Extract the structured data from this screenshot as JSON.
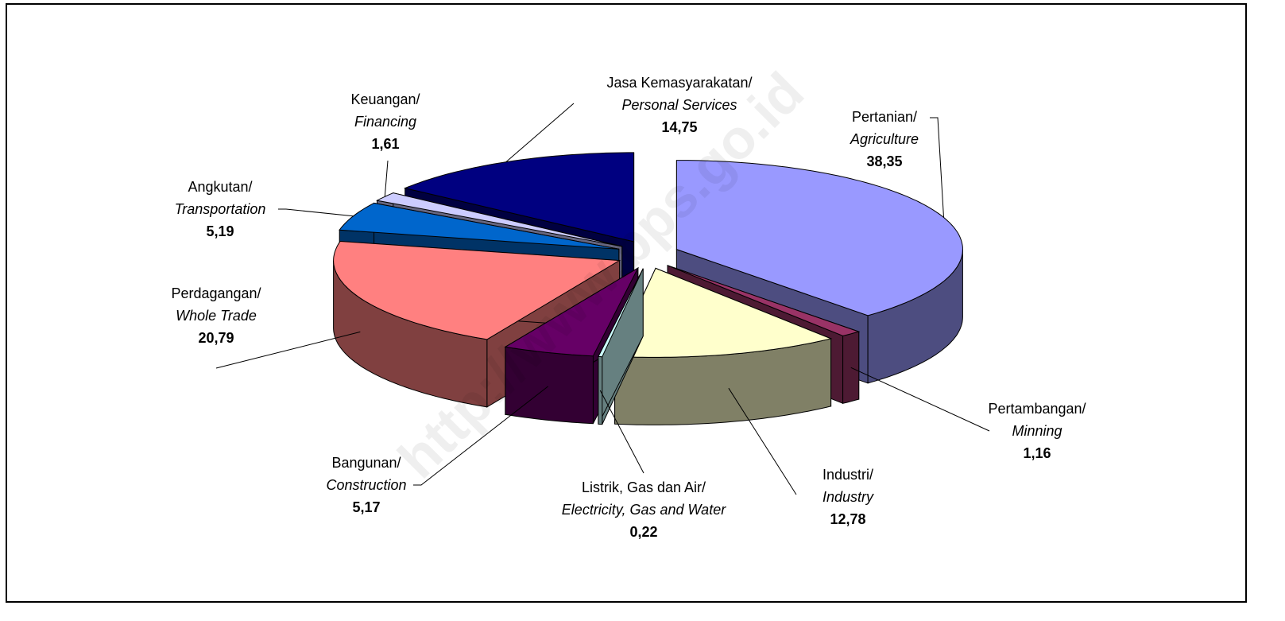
{
  "chart_data": {
    "type": "pie3d",
    "categories": [
      "Pertanian/",
      "Pertambangan/",
      "Industri/",
      "Listrik, Gas dan Air/",
      "Bangunan/",
      "Perdagangan/",
      "Angkutan/",
      "Keuangan/",
      "Jasa Kemasyarakatan/"
    ],
    "categories_en": [
      "Agriculture",
      "Minning",
      "Industry",
      "Electricity, Gas and Water",
      "Construction",
      "Whole Trade",
      "Transportation",
      "Financing",
      "Personal Services"
    ],
    "values": [
      38.35,
      1.16,
      12.78,
      0.22,
      5.17,
      20.79,
      5.19,
      1.61,
      14.75
    ],
    "value_labels": [
      "38,35",
      "1,16",
      "12,78",
      "0,22",
      "5,17",
      "20,79",
      "5,19",
      "1,61",
      "14,75"
    ],
    "colors": [
      "#9999ff",
      "#993366",
      "#ffffcc",
      "#ccffff",
      "#660066",
      "#ff8080",
      "#0066cc",
      "#ccccff",
      "#000080"
    ],
    "watermark": "http://www.bps.go.id"
  }
}
